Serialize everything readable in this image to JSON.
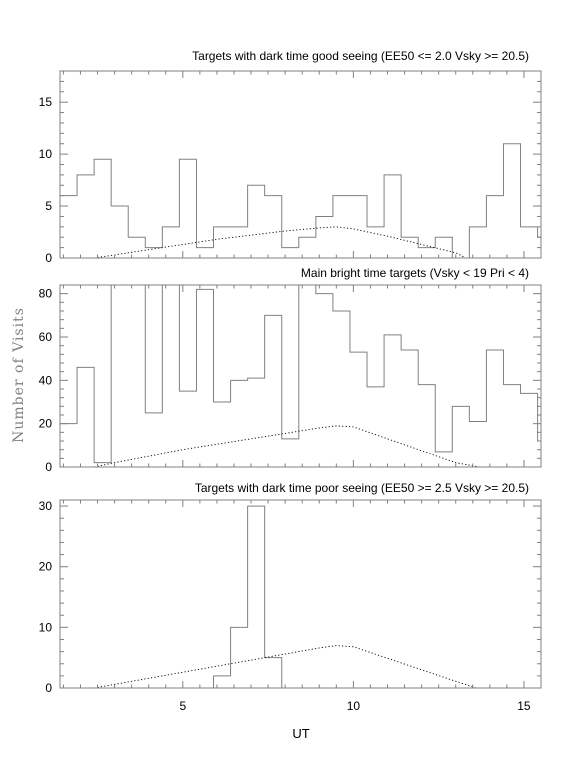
{
  "ylabel": "Number of Visits",
  "xlabel": "UT",
  "chart_data": [
    {
      "type": "histogram",
      "title": "Targets with dark time good seeing (EE50 <= 2.0 Vsky >= 20.5)",
      "xlim": [
        1.4,
        15.5
      ],
      "ylim": [
        0,
        18
      ],
      "yticks": [
        0,
        5,
        10,
        15
      ],
      "xticks": [
        5,
        10,
        15
      ],
      "bin_width": 0.5,
      "bin_start": 1.4,
      "bar_values": [
        6,
        8,
        9.5,
        5,
        2,
        1,
        3,
        9.5,
        1,
        3,
        3,
        7,
        6,
        1,
        2,
        4,
        6,
        6,
        3,
        8,
        2,
        1,
        2,
        0,
        3,
        6,
        11,
        3,
        2
      ],
      "model_line": {
        "x": [
          2.4,
          3,
          4,
          5,
          6,
          7,
          8,
          9,
          9.5,
          10,
          11,
          12,
          13,
          13.3
        ],
        "y": [
          0,
          0.3,
          0.8,
          1.3,
          1.8,
          2.2,
          2.6,
          2.9,
          3,
          2.8,
          2.1,
          1.3,
          0.5,
          0
        ]
      }
    },
    {
      "type": "histogram",
      "title": "Main bright time targets (Vsky < 19 Pri < 4)",
      "xlim": [
        1.4,
        15.5
      ],
      "ylim": [
        0,
        84
      ],
      "yticks": [
        0,
        20,
        40,
        60,
        80
      ],
      "xticks": [
        5,
        10,
        15
      ],
      "bin_width": 0.5,
      "bin_start": 1.4,
      "bar_values": [
        20,
        46,
        2,
        84,
        84,
        25,
        84,
        35,
        82,
        30,
        40,
        41,
        70,
        13,
        84,
        80,
        72,
        53,
        37,
        61,
        54,
        38,
        7,
        28,
        21,
        54,
        38,
        34,
        12
      ],
      "model_line": {
        "x": [
          2.4,
          3,
          4,
          5,
          6,
          7,
          8,
          9,
          9.5,
          10,
          11,
          12,
          13,
          13.7
        ],
        "y": [
          0,
          2,
          5,
          8,
          10.5,
          13,
          15.5,
          18,
          19,
          18.5,
          13,
          7.5,
          2,
          0
        ]
      }
    },
    {
      "type": "histogram",
      "title": "Targets with dark time poor seeing (EE50 >= 2.5 Vsky >= 20.5)",
      "xlim": [
        1.4,
        15.5
      ],
      "ylim": [
        0,
        31
      ],
      "yticks": [
        0,
        10,
        20,
        30
      ],
      "xticks": [
        5,
        10,
        15
      ],
      "bin_width": 0.5,
      "bin_start": 1.4,
      "bar_values": [
        0,
        0,
        0,
        0,
        0,
        0,
        0,
        0,
        0,
        2,
        10,
        30,
        5,
        0,
        0,
        0,
        0,
        0,
        0,
        0,
        0,
        0,
        0,
        0,
        0,
        0,
        0,
        0,
        0
      ],
      "model_line": {
        "x": [
          2.4,
          3,
          4,
          5,
          6,
          7,
          8,
          9,
          9.5,
          10,
          11,
          12,
          13,
          13.6
        ],
        "y": [
          0,
          0.6,
          1.6,
          2.6,
          3.6,
          4.6,
          5.6,
          6.6,
          7,
          6.8,
          4.9,
          3,
          1.1,
          0
        ]
      }
    }
  ]
}
